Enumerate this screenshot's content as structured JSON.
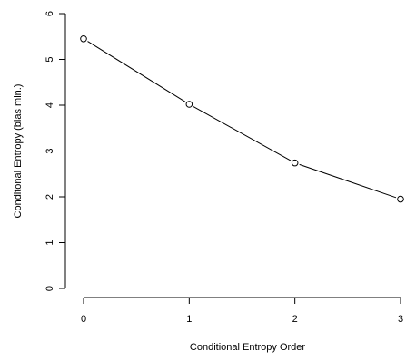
{
  "chart_data": {
    "type": "line",
    "title": "",
    "xlabel": "Conditional Entropy Order",
    "ylabel": "Conditonal Entropy (bias min.)",
    "x": [
      0,
      1,
      2,
      3
    ],
    "series": [
      {
        "values": [
          5.45,
          4.02,
          2.74,
          1.95
        ]
      }
    ],
    "xlim": [
      0,
      3
    ],
    "ylim": [
      0,
      6
    ],
    "xticks": [
      "0",
      "1",
      "2",
      "3"
    ],
    "yticks": [
      "0",
      "1",
      "2",
      "3",
      "4",
      "5",
      "6"
    ],
    "marker": "open-circle",
    "grid": false,
    "legend": "none",
    "colors": {
      "line": "#000000",
      "marker_fill": "#ffffff"
    }
  }
}
